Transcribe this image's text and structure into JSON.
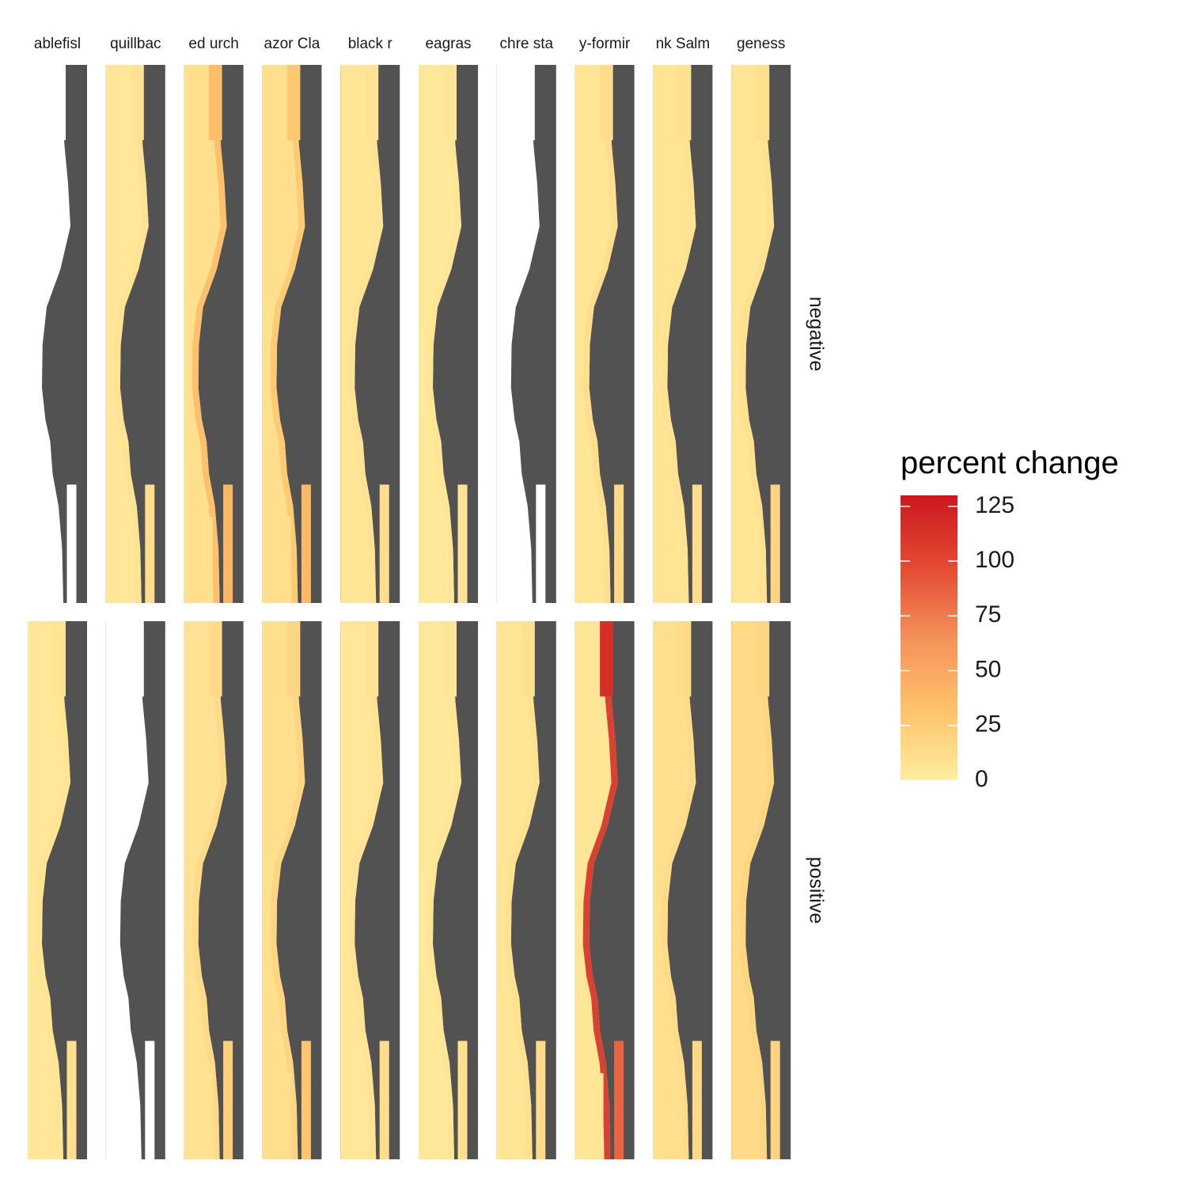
{
  "chart_data": {
    "type": "heatmap",
    "description_kind": "faceted map grid",
    "columns": [
      "ablefisl",
      "quillbac",
      "ed urch",
      "azor Cla",
      "black r",
      "eagras",
      "chre sta",
      "y-formir",
      "nk Salm",
      "geness"
    ],
    "rows": [
      "negative",
      "positive"
    ],
    "legend": {
      "title": "percent change",
      "ticks": [
        0,
        25,
        50,
        75,
        100,
        125
      ],
      "range": [
        0,
        130
      ],
      "colors": [
        "#ffeda0",
        "#fec26a",
        "#f4915a",
        "#e34a33",
        "#cb181d"
      ],
      "position": "right"
    },
    "panel_values": {
      "negative": [
        {
          "base": 5,
          "coast": 7,
          "inlet": 10,
          "missing": true
        },
        {
          "base": 5,
          "coast": 8,
          "inlet": 12,
          "missing": false
        },
        {
          "base": 10,
          "coast": 35,
          "inlet": 40,
          "missing": false
        },
        {
          "base": 10,
          "coast": 28,
          "inlet": 38,
          "missing": false
        },
        {
          "base": 6,
          "coast": 8,
          "inlet": 12,
          "missing": false
        },
        {
          "base": 4,
          "coast": 6,
          "inlet": 8,
          "missing": false
        },
        {
          "base": 0,
          "coast": 0,
          "inlet": 0,
          "missing": true
        },
        {
          "base": 6,
          "coast": 12,
          "inlet": 15,
          "missing": false
        },
        {
          "base": 7,
          "coast": 9,
          "inlet": 12,
          "missing": false
        },
        {
          "base": 6,
          "coast": 10,
          "inlet": 18,
          "missing": false
        }
      ],
      "positive": [
        {
          "base": 5,
          "coast": 7,
          "inlet": 10,
          "missing": false
        },
        {
          "base": 0,
          "coast": 0,
          "inlet": 0,
          "missing": true
        },
        {
          "base": 8,
          "coast": 15,
          "inlet": 22,
          "missing": false
        },
        {
          "base": 10,
          "coast": 18,
          "inlet": 30,
          "missing": false
        },
        {
          "base": 5,
          "coast": 8,
          "inlet": 12,
          "missing": false
        },
        {
          "base": 4,
          "coast": 6,
          "inlet": 10,
          "missing": false
        },
        {
          "base": 6,
          "coast": 10,
          "inlet": 14,
          "missing": false
        },
        {
          "base": 6,
          "coast": 115,
          "inlet": 85,
          "missing": false
        },
        {
          "base": 10,
          "coast": 14,
          "inlet": 16,
          "missing": false
        },
        {
          "base": 14,
          "coast": 18,
          "inlet": 20,
          "missing": false
        }
      ]
    },
    "background": "#525252"
  }
}
